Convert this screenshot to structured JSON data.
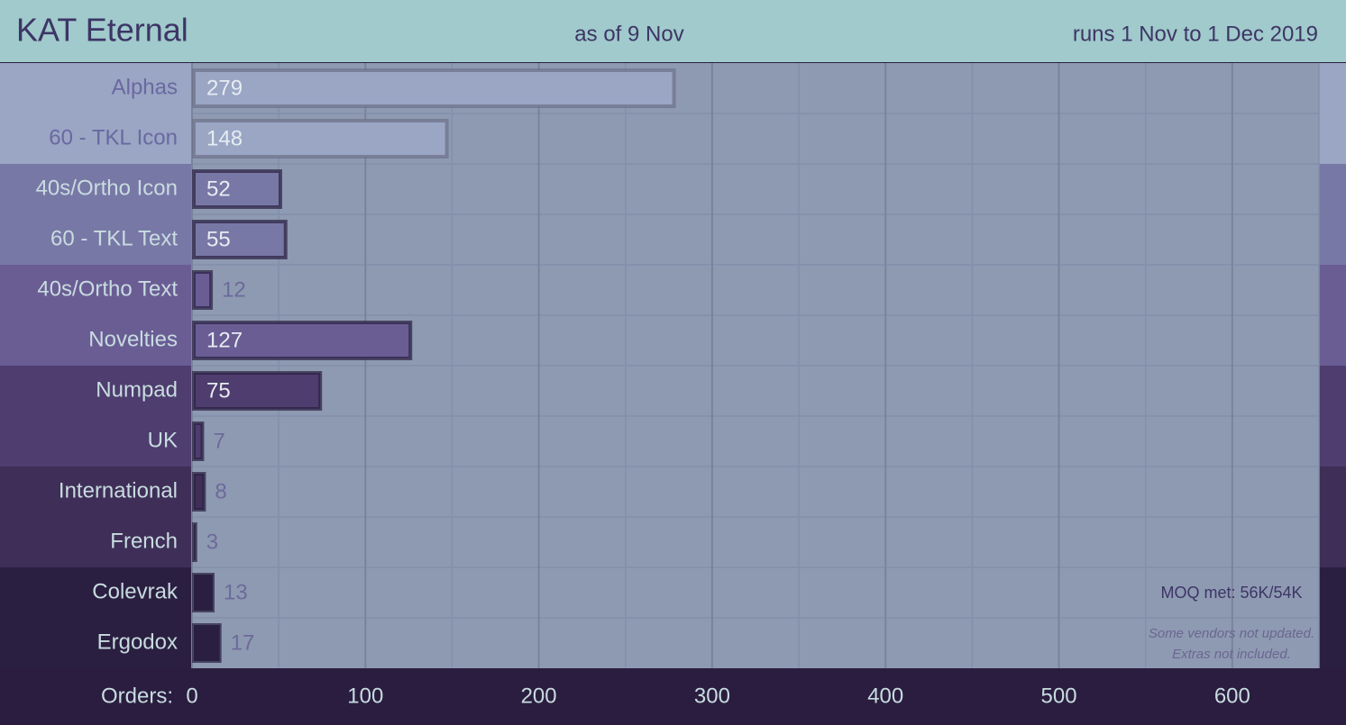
{
  "chart_data": {
    "type": "hbar",
    "title": "KAT Eternal",
    "subtitle": "as of 9 Nov",
    "date_range": "runs 1 Nov to 1 Dec 2019",
    "x_label": "Orders:",
    "categories": [
      "Alphas",
      "60 - TKL Icon",
      "40s/Ortho Icon",
      "60 - TKL Text",
      "40s/Ortho Text",
      "Novelties",
      "Numpad",
      "UK",
      "International",
      "French",
      "Colevrak",
      "Ergodox"
    ],
    "values": [
      279,
      148,
      52,
      55,
      12,
      127,
      75,
      7,
      8,
      3,
      13,
      17
    ],
    "colors": [
      "#9aa6c4",
      "#9aa6c4",
      "#7878a6",
      "#7878a6",
      "#6a5d94",
      "#6a5d94",
      "#4e3d6e",
      "#4e3d6e",
      "#3f2f58",
      "#3f2f58",
      "#2b1f41",
      "#2b1f41"
    ],
    "xlim": [
      0,
      650
    ],
    "xticks": [
      0,
      100,
      200,
      300,
      400,
      500,
      600
    ],
    "xminorticks": [
      50,
      150,
      250,
      350,
      450,
      550,
      650
    ],
    "grid": true,
    "annotations": [
      "MOQ met: 56K/54K",
      "Some vendors not updated.",
      "Extras not included."
    ]
  }
}
